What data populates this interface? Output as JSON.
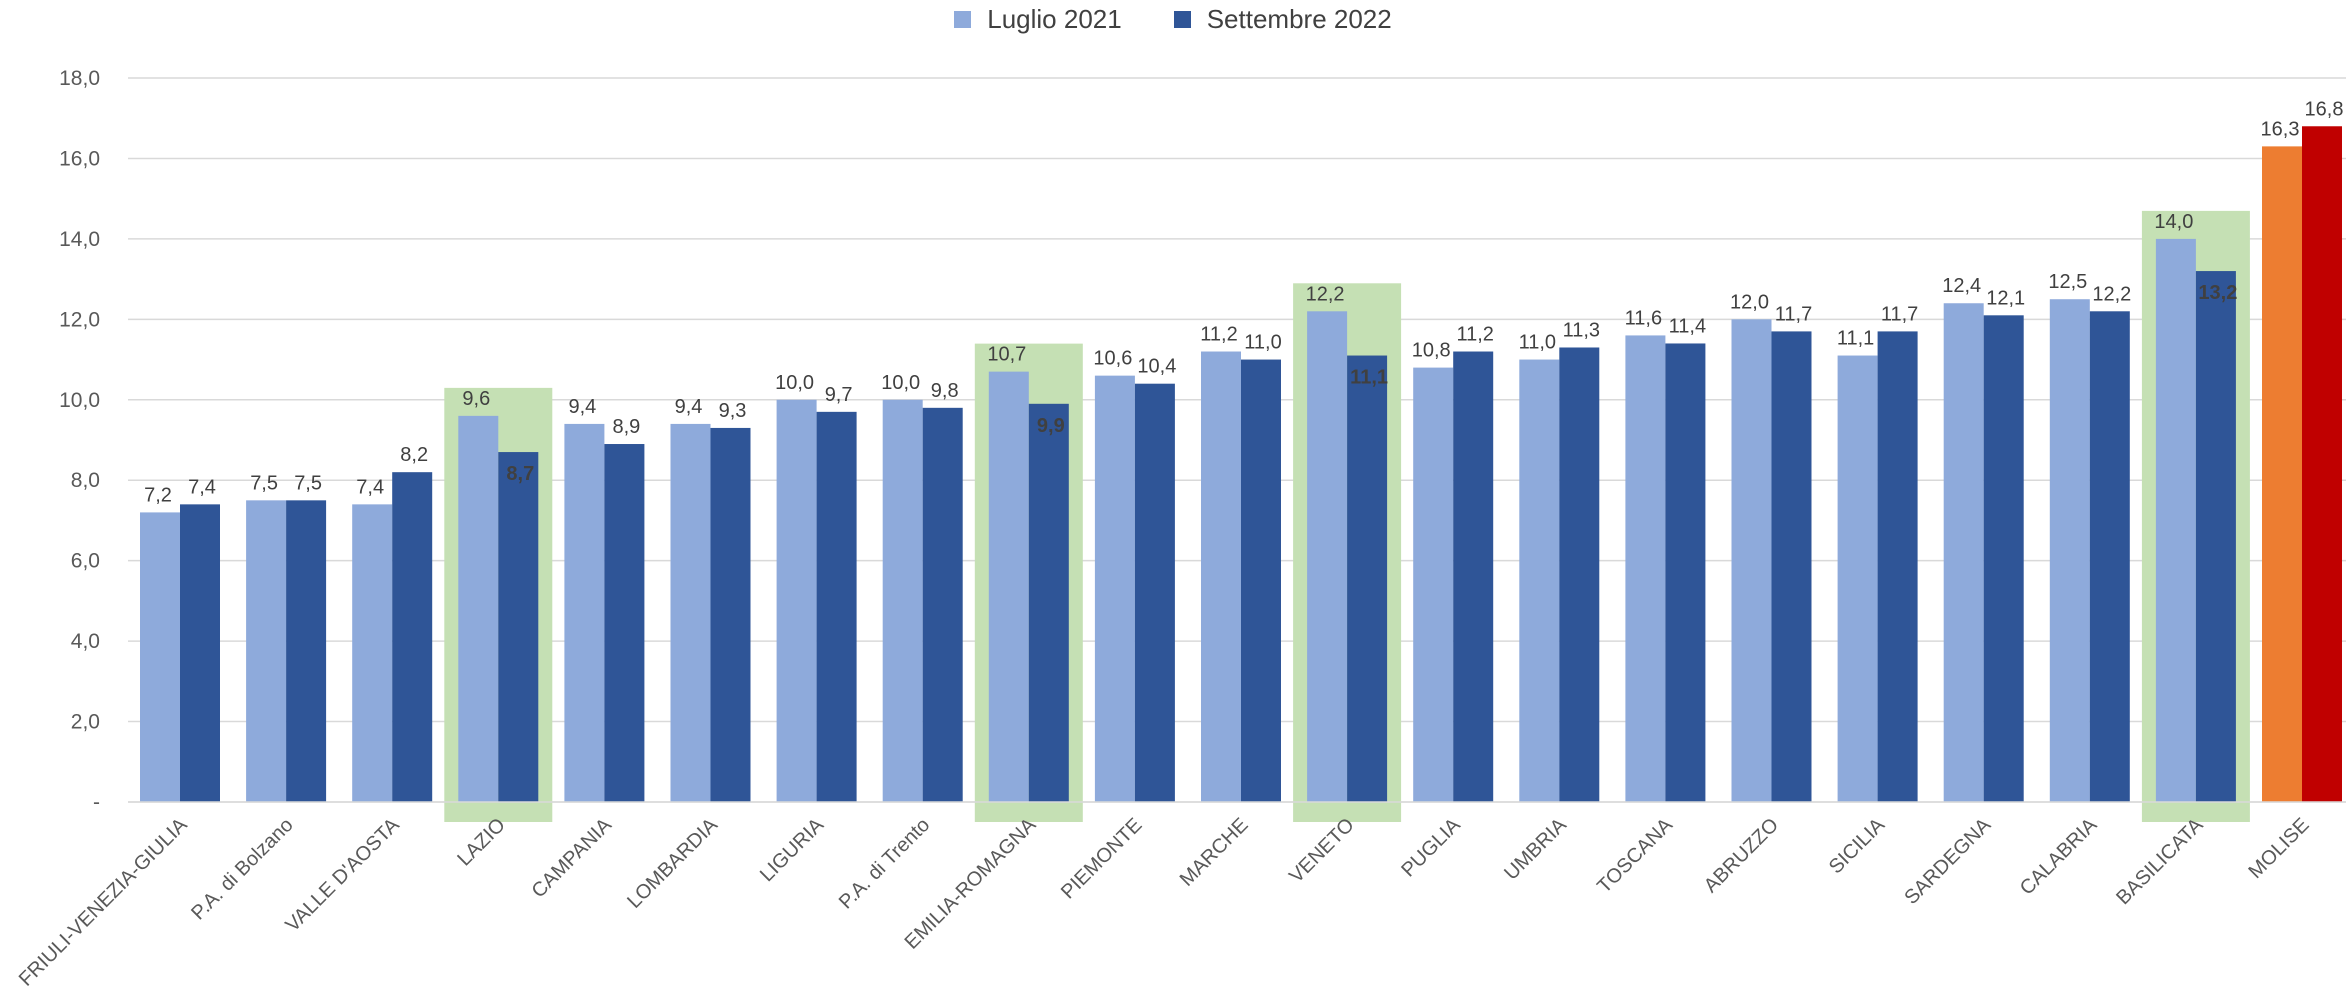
{
  "legend": [
    {
      "name": "Luglio 2021",
      "color": "#8eaadb"
    },
    {
      "name": "Settembre 2022",
      "color": "#2f5597"
    }
  ],
  "chart_data": {
    "type": "bar",
    "title": "",
    "xlabel": "",
    "ylabel": "",
    "ylim": [
      0,
      18
    ],
    "yticks": [
      "-",
      "2,0",
      "4,0",
      "6,0",
      "8,0",
      "10,0",
      "12,0",
      "14,0",
      "16,0",
      "18,0"
    ],
    "grid": true,
    "legend_position": "top-center",
    "categories": [
      "FRIULI-VENEZIA-GIULIA",
      "P.A. di Bolzano",
      "VALLE D'AOSTA",
      "LAZIO",
      "CAMPANIA",
      "LOMBARDIA",
      "LIGURIA",
      "P.A. di Trento",
      "EMILIA-ROMAGNA",
      "PIEMONTE",
      "MARCHE",
      "VENETO",
      "PUGLIA",
      "UMBRIA",
      "TOSCANA",
      "ABRUZZO",
      "SICILIA",
      "SARDEGNA",
      "CALABRIA",
      "BASILICATA",
      "MOLISE"
    ],
    "series": [
      {
        "name": "Luglio 2021",
        "color": "#8eaadb",
        "values": [
          7.2,
          7.5,
          7.4,
          9.6,
          9.4,
          9.4,
          10.0,
          10.0,
          10.7,
          10.6,
          11.2,
          12.2,
          10.8,
          11.0,
          11.6,
          12.0,
          11.1,
          12.4,
          12.5,
          14.0,
          16.3
        ],
        "labels": [
          "7,2",
          "7,5",
          "7,4",
          "9,6",
          "9,4",
          "9,4",
          "10,0",
          "10,0",
          "10,7",
          "10,6",
          "11,2",
          "12,2",
          "10,8",
          "11,0",
          "11,6",
          "12,0",
          "11,1",
          "12,4",
          "12,5",
          "14,0",
          "16,3"
        ]
      },
      {
        "name": "Settembre 2022",
        "color": "#2f5597",
        "values": [
          7.4,
          7.5,
          8.2,
          8.7,
          8.9,
          9.3,
          9.7,
          9.8,
          9.9,
          10.4,
          11.0,
          11.1,
          11.2,
          11.3,
          11.4,
          11.7,
          11.7,
          12.1,
          12.2,
          13.2,
          16.8
        ],
        "labels": [
          "7,4",
          "7,5",
          "8,2",
          "8,7",
          "8,9",
          "9,3",
          "9,7",
          "9,8",
          "9,9",
          "10,4",
          "11,0",
          "11,1",
          "11,2",
          "11,3",
          "11,4",
          "11,7",
          "11,7",
          "12,1",
          "12,2",
          "13,2",
          "16,8"
        ]
      }
    ],
    "highlighted_categories": [
      "LAZIO",
      "EMILIA-ROMAGNA",
      "VENETO",
      "BASILICATA"
    ],
    "highlight_color": "#c5e0b4",
    "bold_labels": [
      "LAZIO",
      "EMILIA-ROMAGNA",
      "VENETO",
      "BASILICATA"
    ],
    "special_colors": {
      "MOLISE": [
        "#ed7d31",
        "#c00000"
      ]
    }
  }
}
